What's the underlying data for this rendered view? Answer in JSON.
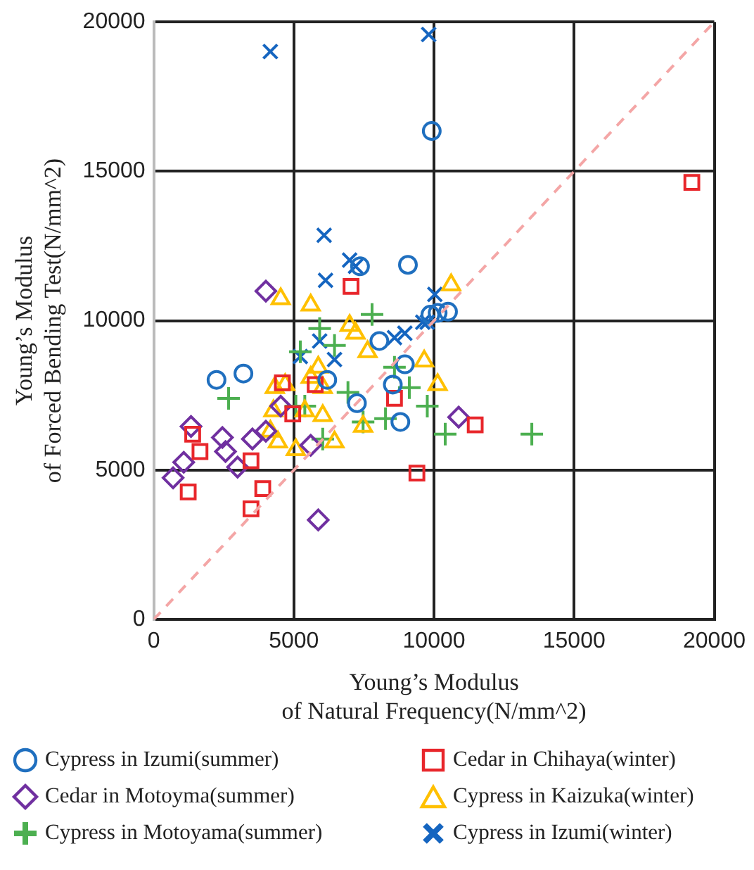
{
  "chart_data": {
    "type": "scatter",
    "xlabel": "Young’s Modulus\nof Natural Frequency(N/mm^2)",
    "ylabel": "Young’s Modulus\nof Forced Bending Test(N/mm^2)",
    "xlim": [
      0,
      20000
    ],
    "ylim": [
      0,
      20000
    ],
    "xticks": [
      0,
      5000,
      10000,
      15000,
      20000
    ],
    "yticks": [
      0,
      5000,
      10000,
      15000,
      20000
    ],
    "grid": true,
    "legend": "bottom",
    "series": [
      {
        "type": "line",
        "color": "#f4a6a6",
        "line_style": "dashed",
        "marker": "none",
        "x": [
          0,
          20000
        ],
        "values": [
          0,
          20000
        ]
      },
      {
        "name": "Cypress in Izumi(summer)",
        "color": "#1f6fbf",
        "marker": "circle",
        "x": [
          2240,
          3200,
          6190,
          7250,
          7360,
          8050,
          8530,
          8800,
          8960,
          9070,
          9920,
          9870,
          10130,
          10500
        ],
        "values": [
          8020,
          8230,
          8020,
          7240,
          11820,
          9320,
          7860,
          6610,
          8540,
          11870,
          16350,
          10200,
          10260,
          10300
        ]
      },
      {
        "name": "Cedar in Chihaya(winter)",
        "color": "#e8262b",
        "marker": "square",
        "x": [
          7040,
          4590,
          5760,
          4960,
          8590,
          1390,
          1650,
          3470,
          3890,
          3470,
          1230,
          9390,
          11470,
          19200
        ],
        "values": [
          11150,
          7920,
          7860,
          6880,
          7400,
          6200,
          5620,
          5310,
          4380,
          3700,
          4270,
          4900,
          6510,
          14630
        ]
      },
      {
        "name": "Cedar in Motoyma(summer)",
        "color": "#7030a0",
        "marker": "diamond",
        "x": [
          4000,
          1330,
          1070,
          690,
          2450,
          2560,
          2990,
          3520,
          4000,
          4530,
          5600,
          5870,
          10880
        ],
        "values": [
          10990,
          6460,
          5260,
          4740,
          6090,
          5620,
          5100,
          6040,
          6300,
          7140,
          5830,
          3330,
          6770
        ]
      },
      {
        "name": "Cypress in Kaizuka(winter)",
        "color": "#ffc000",
        "marker": "triangle",
        "x": [
          4530,
          5600,
          6990,
          7200,
          7630,
          9650,
          10130,
          4320,
          4690,
          5870,
          5600,
          6030,
          4270,
          5390,
          6030,
          4430,
          5070,
          6450,
          7470,
          4160,
          10610
        ],
        "values": [
          10730,
          10520,
          9840,
          9580,
          8960,
          8650,
          7860,
          7760,
          7860,
          8440,
          8100,
          7760,
          6980,
          6980,
          6820,
          5940,
          5680,
          5940,
          6460,
          6300,
          11200
        ]
      },
      {
        "name": "Cypress in Motoyama(summer)",
        "color": "#4caf50",
        "marker": "plus",
        "x": [
          2670,
          5920,
          6450,
          5230,
          7790,
          8590,
          9120,
          9760,
          6930,
          5070,
          5390,
          7470,
          8270,
          6030,
          10400,
          13490
        ],
        "values": [
          7400,
          9740,
          9170,
          8960,
          10210,
          8440,
          7760,
          7140,
          7600,
          7140,
          7140,
          6610,
          6720,
          6040,
          6200,
          6200
        ]
      },
      {
        "name": "Cypress in Izumi(winter)",
        "color": "#1565c0",
        "marker": "cross",
        "x": [
          4160,
          9810,
          6080,
          6990,
          7200,
          6130,
          5920,
          6450,
          5230,
          8960,
          9600,
          8590,
          10030,
          9760
        ],
        "values": [
          19010,
          19580,
          12860,
          12030,
          11820,
          11350,
          9320,
          8700,
          8800,
          9580,
          9950,
          9430,
          10880,
          9950
        ]
      }
    ]
  }
}
